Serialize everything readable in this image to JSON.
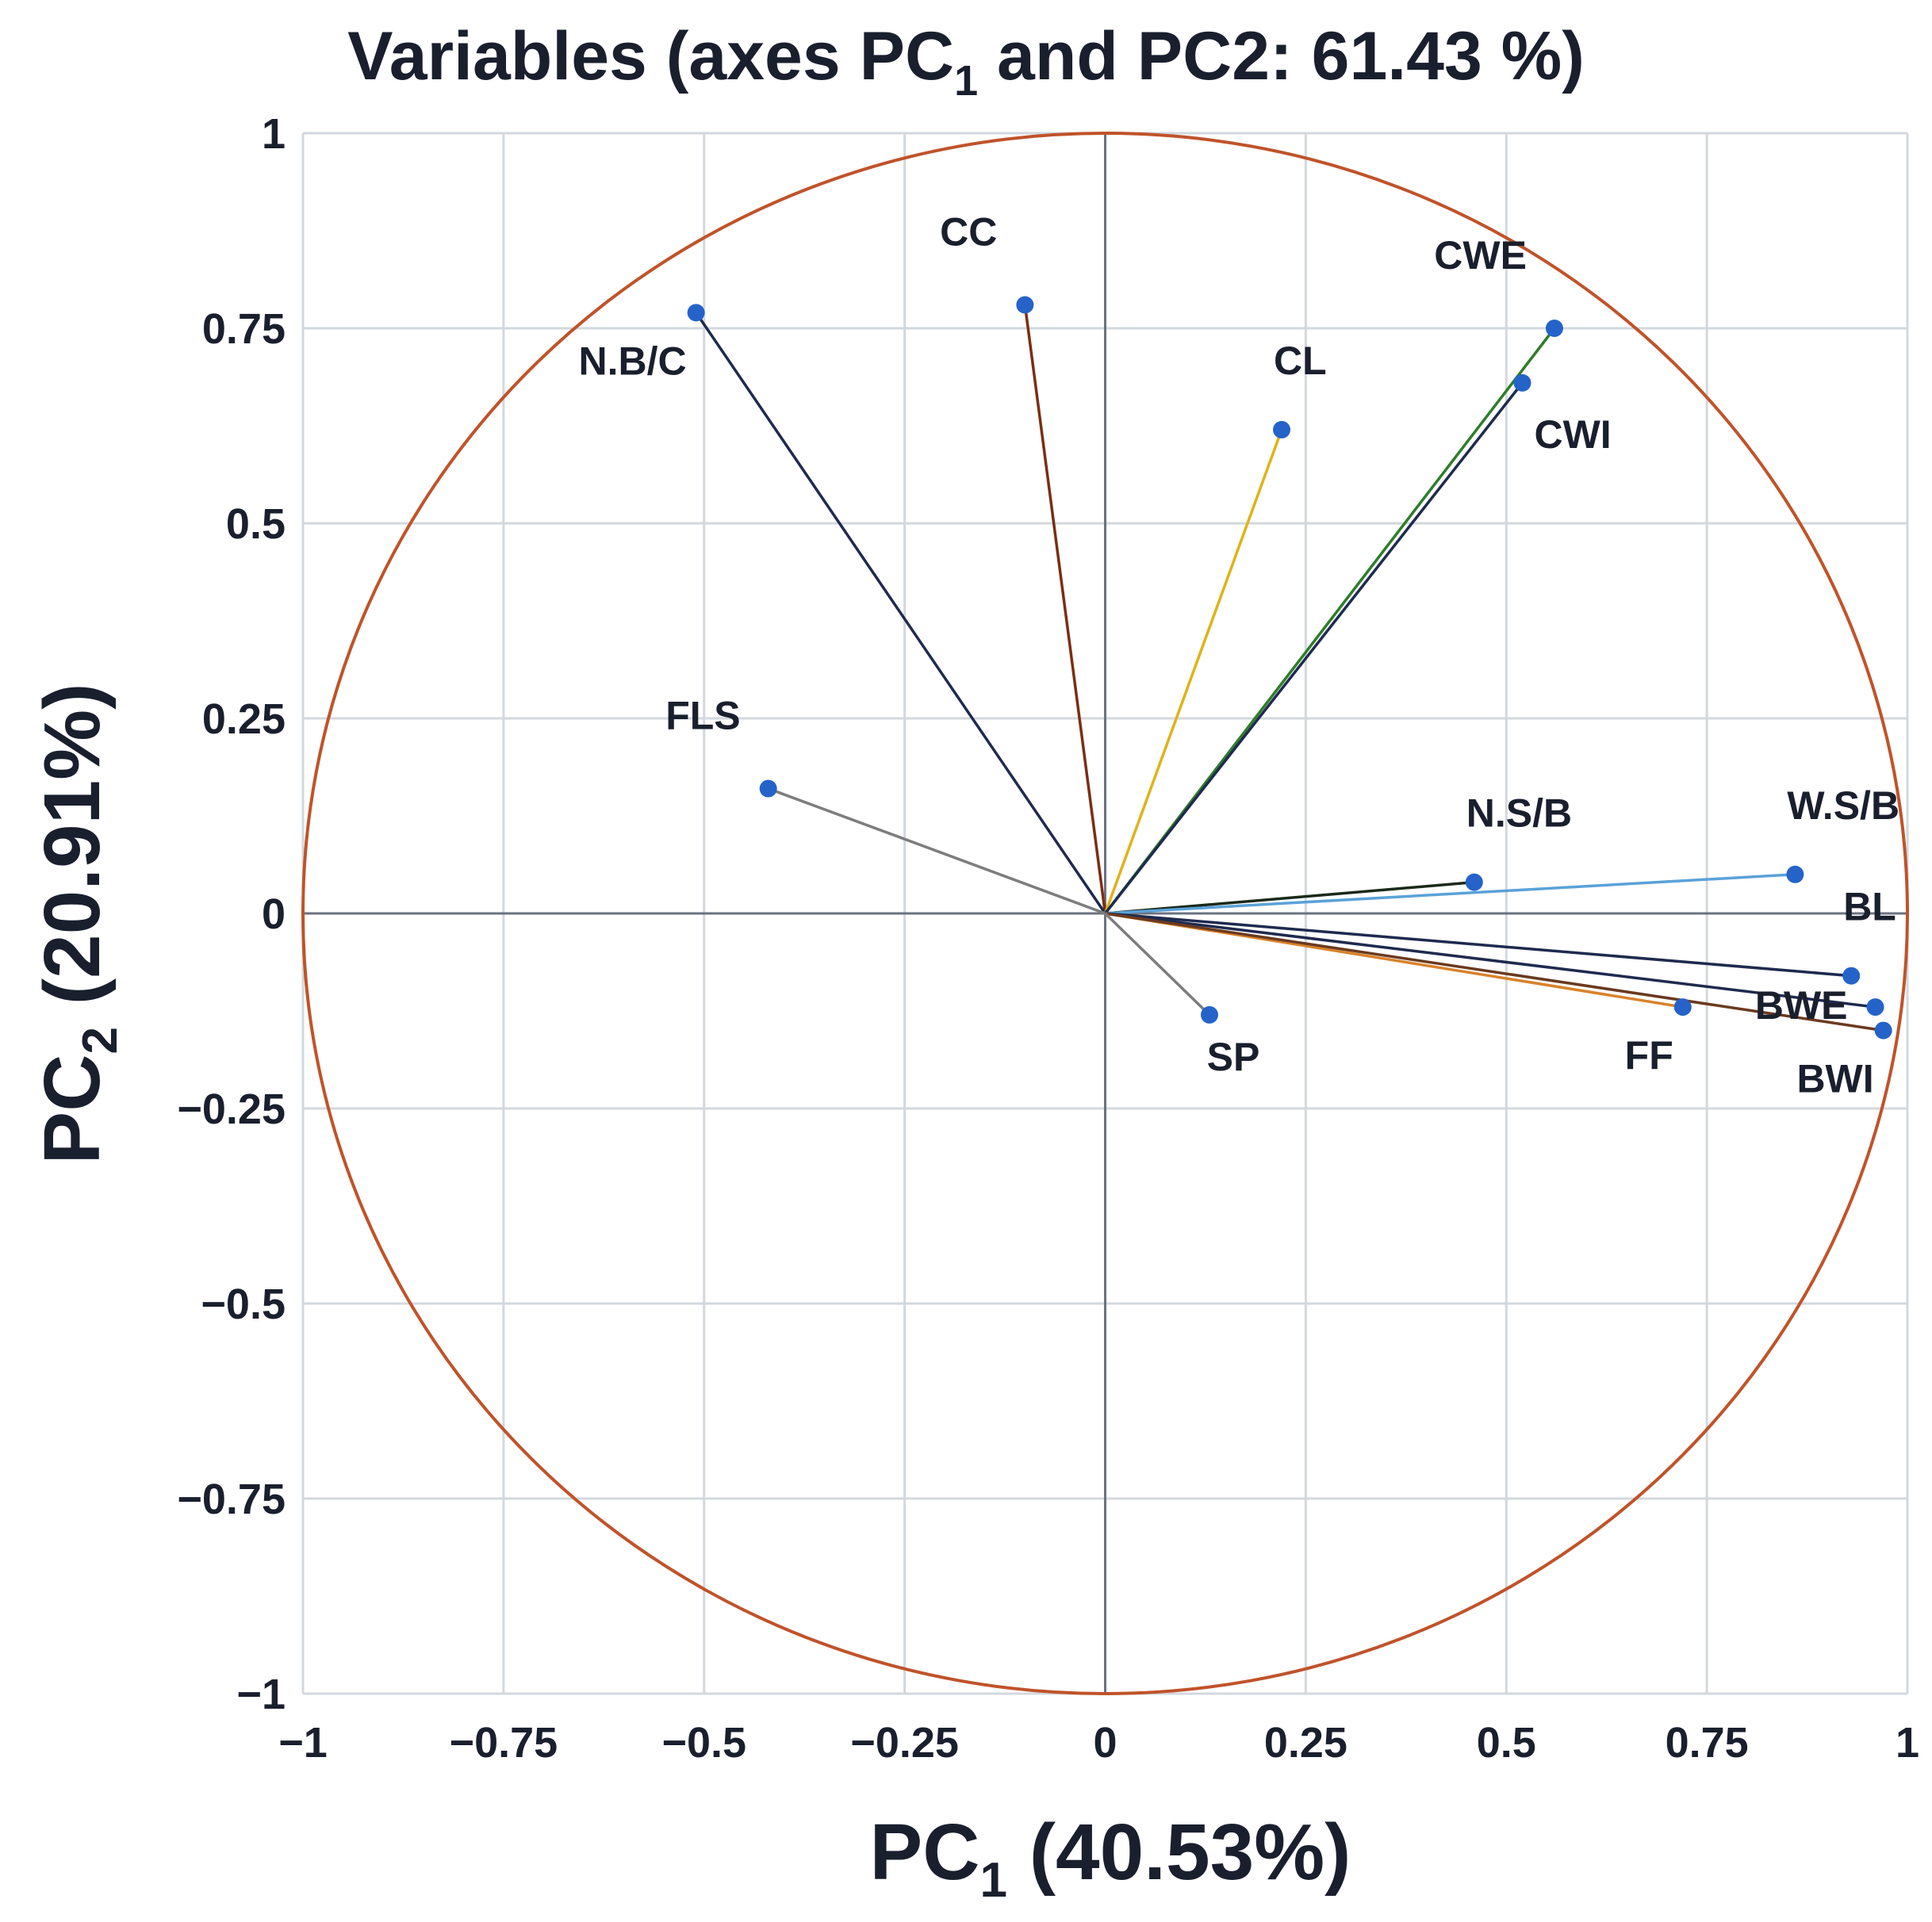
{
  "title": {
    "text": "Variables (axes PC",
    "sub": "1",
    "rest": " and PC2: 61.43 %)"
  },
  "axes": {
    "x": {
      "main": "PC",
      "sub": "1",
      "rest": " (40.53%)"
    },
    "y": {
      "main": "PC",
      "sub": "2",
      "rest": " (20.91%)"
    }
  },
  "chart_data": {
    "type": "scatter",
    "subtype": "pca-correlation-circle",
    "title": "Variables (axes PC1 and PC2: 61.43 %)",
    "xlabel": "PC1 (40.53%)",
    "ylabel": "PC2 (20.91%)",
    "xlim": [
      -1,
      1
    ],
    "ylim": [
      -1,
      1
    ],
    "grid": true,
    "x_ticks": [
      -1,
      -0.75,
      -0.5,
      -0.25,
      0,
      0.25,
      0.5,
      0.75,
      1
    ],
    "y_ticks": [
      -1,
      -0.75,
      -0.5,
      -0.25,
      0,
      0.25,
      0.5,
      0.75,
      1
    ],
    "x_tick_labels": [
      "−1",
      "−0.75",
      "−0.5",
      "−0.25",
      "0",
      "0.25",
      "0.5",
      "0.75",
      "1"
    ],
    "y_tick_labels": [
      "−1",
      "−0.75",
      "−0.5",
      "−0.25",
      "0",
      "0.25",
      "0.5",
      "0.75",
      "1"
    ],
    "circle_color": "#c0532a",
    "point_color": "#2563c9",
    "grid_color": "#d3d8de",
    "axis_line_color": "#6b7280",
    "variables": [
      {
        "name": "CC",
        "x": -0.1,
        "y": 0.78,
        "color": "#7a2e12",
        "label_pos": "above-left"
      },
      {
        "name": "N.B/C",
        "x": -0.51,
        "y": 0.77,
        "color": "#1f2a4f",
        "label_pos": "below-left"
      },
      {
        "name": "CL",
        "x": 0.22,
        "y": 0.62,
        "color": "#e0b21c",
        "label_pos": "above-right"
      },
      {
        "name": "CWE",
        "x": 0.56,
        "y": 0.75,
        "color": "#2f7d2a",
        "label_pos": "above-left"
      },
      {
        "name": "CWI",
        "x": 0.52,
        "y": 0.68,
        "color": "#1f2a4f",
        "label_pos": "below-right"
      },
      {
        "name": "FLS",
        "x": -0.42,
        "y": 0.16,
        "color": "#7d7d7d",
        "label_pos": "above-left"
      },
      {
        "name": "N.S/B",
        "x": 0.46,
        "y": 0.04,
        "color": "#1a2a1a",
        "label_pos": "above-right"
      },
      {
        "name": "W.S/B",
        "x": 0.86,
        "y": 0.05,
        "color": "#5aa2d8",
        "label_pos": "above-right"
      },
      {
        "name": "BL",
        "x": 0.93,
        "y": -0.08,
        "color": "#1f2a4f",
        "label_pos": "above-right"
      },
      {
        "name": "FF",
        "x": 0.72,
        "y": -0.12,
        "color": "#d9822b",
        "label_pos": "below-left"
      },
      {
        "name": "BWE",
        "x": 0.96,
        "y": -0.12,
        "color": "#1f2a4f",
        "label_pos": "left"
      },
      {
        "name": "BWI",
        "x": 0.97,
        "y": -0.15,
        "color": "#6b3a1f",
        "label_pos": "below-left"
      },
      {
        "name": "SP",
        "x": 0.13,
        "y": -0.13,
        "color": "#7d7d7d",
        "label_pos": "below"
      }
    ]
  }
}
